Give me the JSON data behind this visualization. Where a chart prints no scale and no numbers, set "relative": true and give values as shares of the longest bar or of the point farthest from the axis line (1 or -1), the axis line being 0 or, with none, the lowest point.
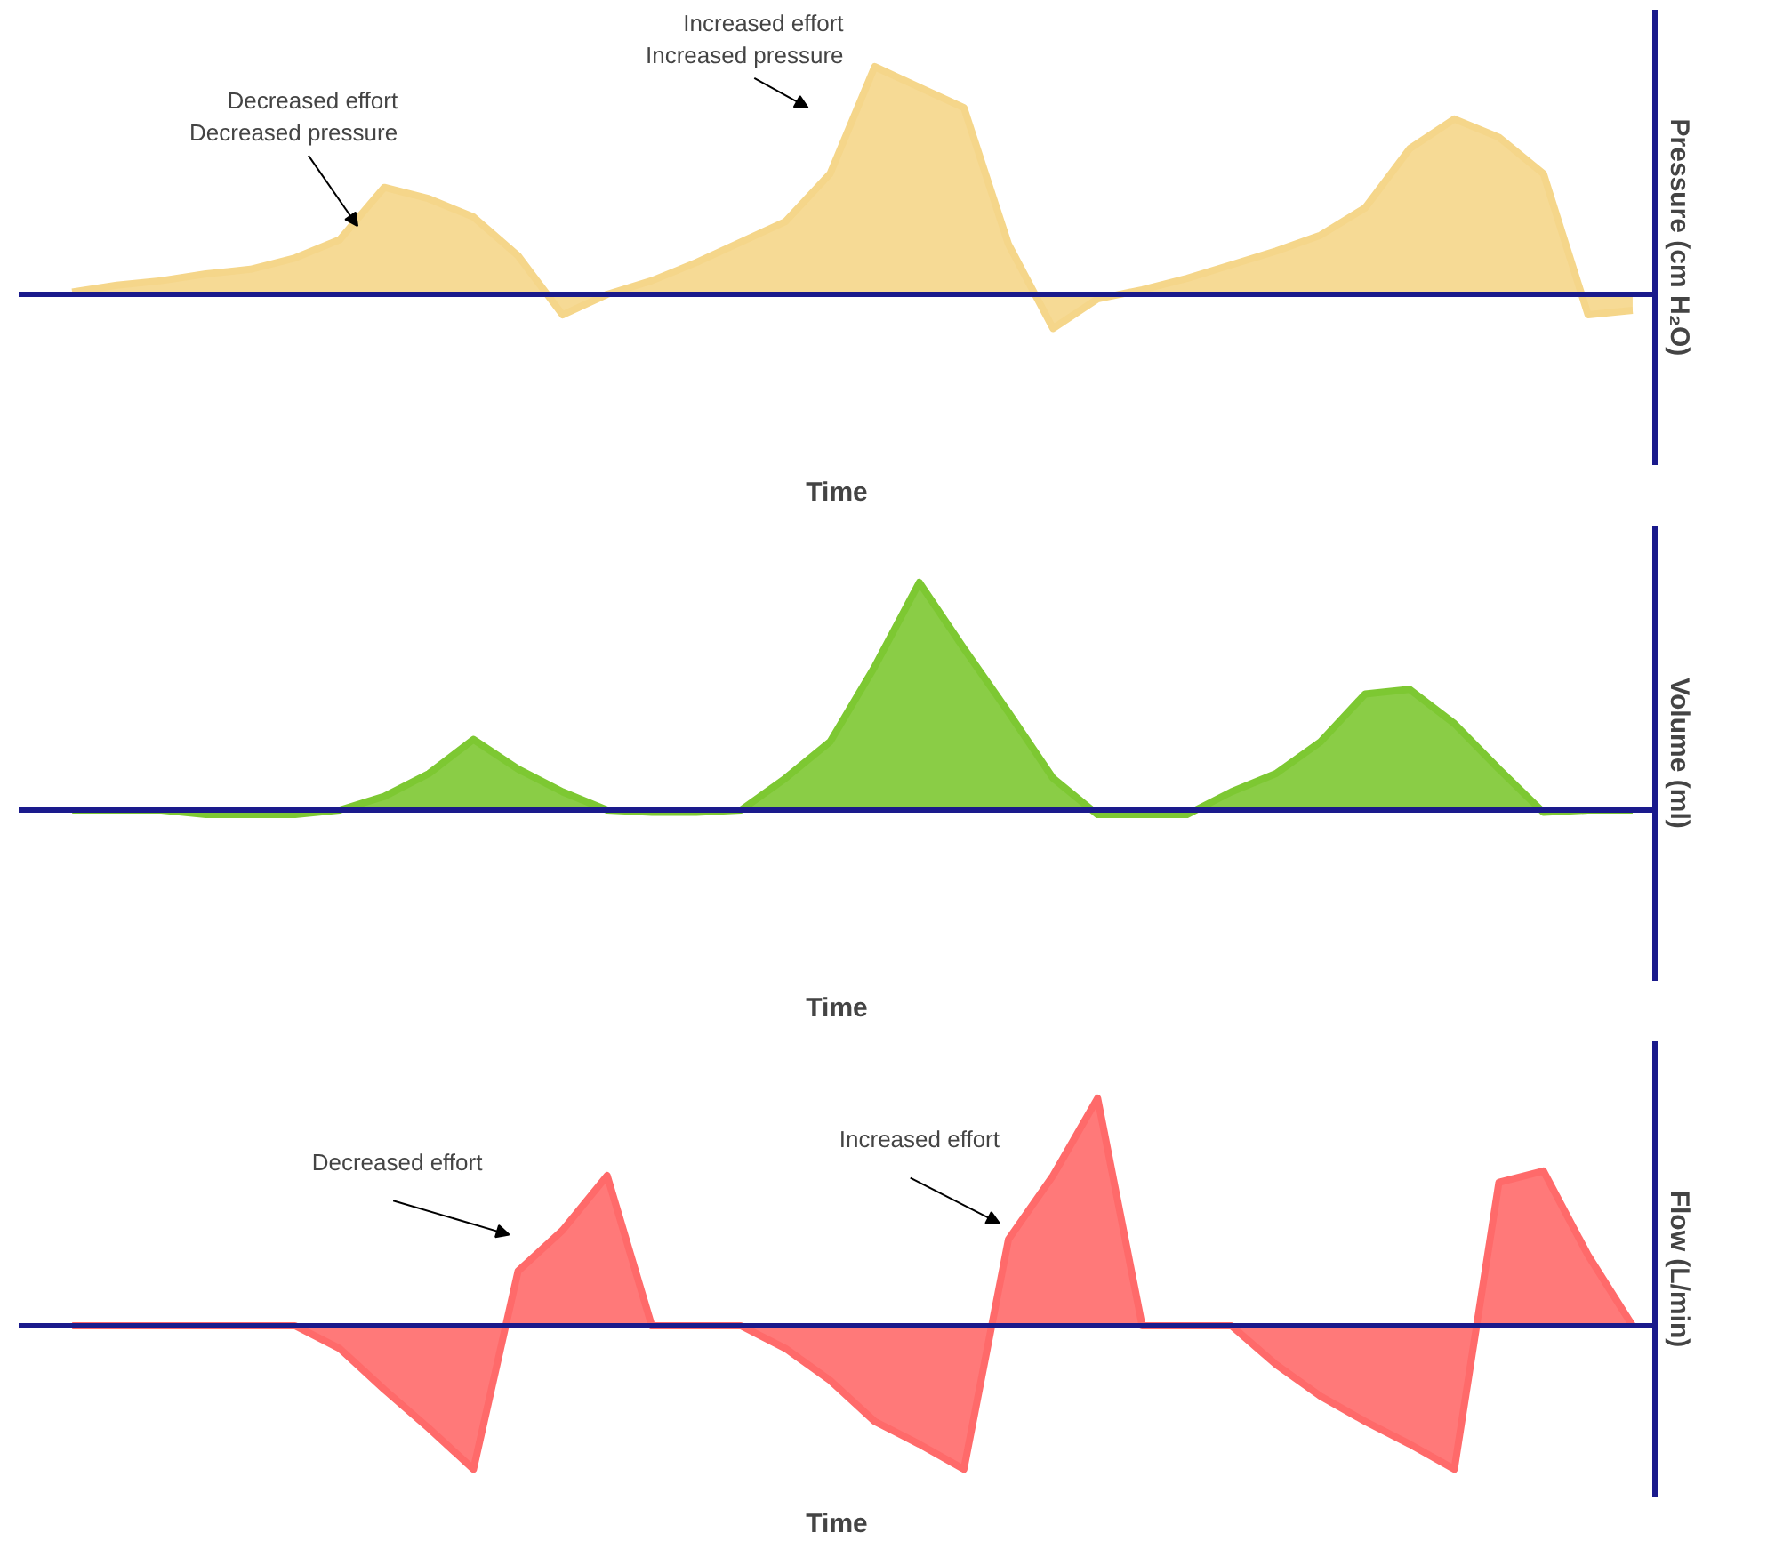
{
  "chart_data": [
    {
      "type": "area",
      "relative": true,
      "ylabel": "Pressure (cm H₂O)",
      "xlabel": "Time",
      "categories": [
        null,
        null,
        null,
        null,
        null,
        null,
        null,
        null,
        null,
        null,
        null,
        null,
        null,
        null,
        null,
        null,
        null,
        null,
        null,
        null,
        null,
        null,
        null,
        null,
        null,
        null,
        null,
        null,
        null,
        null,
        null,
        null,
        null,
        null,
        null,
        null
      ],
      "series": [
        {
          "color": "#f5d68a",
          "values": [
            0.01,
            0.04,
            0.06,
            0.09,
            0.11,
            0.16,
            0.24,
            0.47,
            0.42,
            0.34,
            0.17,
            -0.09,
            0,
            0.06,
            0.14,
            0.23,
            0.32,
            0.53,
            1,
            0.91,
            0.82,
            0.22,
            -0.15,
            -0.02,
            0.02,
            0.07,
            0.13,
            0.19,
            0.26,
            0.38,
            0.64,
            0.77,
            0.69,
            0.53,
            -0.09,
            -0.07
          ]
        }
      ],
      "ref_lines": [
        {
          "axis": "y",
          "value": 0,
          "color": "#1a1a8c"
        }
      ],
      "annotations": [
        "Decreased effort\nDecreased pressure",
        "Increased effort\nIncreased pressure"
      ]
    },
    {
      "type": "area",
      "relative": true,
      "ylabel": "Volume (ml)",
      "xlabel": "Time",
      "categories": [
        null,
        null,
        null,
        null,
        null,
        null,
        null,
        null,
        null,
        null,
        null,
        null,
        null,
        null,
        null,
        null,
        null,
        null,
        null,
        null,
        null,
        null,
        null,
        null,
        null,
        null,
        null,
        null,
        null,
        null,
        null,
        null,
        null,
        null,
        null,
        null
      ],
      "series": [
        {
          "color": "#7dc832",
          "values": [
            0,
            0,
            0,
            -0.02,
            -0.02,
            -0.02,
            0,
            0.06,
            0.16,
            0.31,
            0.18,
            0.08,
            0,
            -0.01,
            -0.01,
            0,
            0.14,
            0.3,
            0.63,
            1,
            0.71,
            0.43,
            0.14,
            -0.02,
            -0.02,
            -0.02,
            0.08,
            0.16,
            0.3,
            0.51,
            0.53,
            0.38,
            0.18,
            -0.01,
            0,
            0
          ]
        }
      ],
      "ref_lines": [
        {
          "axis": "y",
          "value": 0,
          "color": "#1a1a8c"
        }
      ]
    },
    {
      "type": "area",
      "relative": true,
      "ylabel": "Flow (L/min)",
      "xlabel": "Time",
      "categories": [
        null,
        null,
        null,
        null,
        null,
        null,
        null,
        null,
        null,
        null,
        null,
        null,
        null,
        null,
        null,
        null,
        null,
        null,
        null,
        null,
        null,
        null,
        null,
        null,
        null,
        null,
        null,
        null,
        null,
        null,
        null,
        null,
        null,
        null,
        null,
        null
      ],
      "series": [
        {
          "color": "#ff6a6a",
          "values": [
            0,
            0,
            0,
            0,
            0,
            0,
            -0.1,
            -0.28,
            -0.45,
            -0.63,
            0.24,
            0.42,
            0.66,
            0,
            0,
            0,
            -0.1,
            -0.24,
            -0.42,
            -0.52,
            -0.63,
            0.38,
            0.66,
            1,
            0,
            0,
            0,
            -0.17,
            -0.31,
            -0.42,
            -0.52,
            -0.63,
            0.63,
            0.68,
            0.31,
            0
          ]
        }
      ],
      "ref_lines": [
        {
          "axis": "y",
          "value": 0,
          "color": "#1a1a8c"
        }
      ],
      "annotations": [
        "Decreased effort",
        "Increased effort"
      ]
    }
  ]
}
